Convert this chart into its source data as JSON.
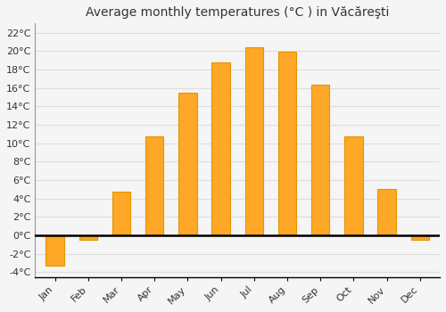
{
  "title": "Average monthly temperatures (°C ) in Văcăreşti",
  "months": [
    "Jan",
    "Feb",
    "Mar",
    "Apr",
    "May",
    "Jun",
    "Jul",
    "Aug",
    "Sep",
    "Oct",
    "Nov",
    "Dec"
  ],
  "values": [
    -3.3,
    -0.5,
    4.7,
    10.7,
    15.5,
    18.8,
    20.4,
    19.9,
    16.4,
    10.7,
    5.0,
    -0.5
  ],
  "bar_color": "#FFA726",
  "bar_edge_color": "#E59400",
  "background_color": "#F5F5F5",
  "plot_bg_color": "#F5F5F5",
  "grid_color": "#DDDDDD",
  "ylim": [
    -4.5,
    23
  ],
  "yticks": [
    -4,
    -2,
    0,
    2,
    4,
    6,
    8,
    10,
    12,
    14,
    16,
    18,
    20,
    22
  ],
  "ytick_labels": [
    "-4°C",
    "-2°C",
    "0°C",
    "2°C",
    "4°C",
    "6°C",
    "8°C",
    "10°C",
    "12°C",
    "14°C",
    "16°C",
    "18°C",
    "20°C",
    "22°C"
  ],
  "title_fontsize": 10,
  "tick_fontsize": 8,
  "bar_width": 0.55,
  "figsize": [
    5.0,
    3.5
  ],
  "dpi": 100
}
